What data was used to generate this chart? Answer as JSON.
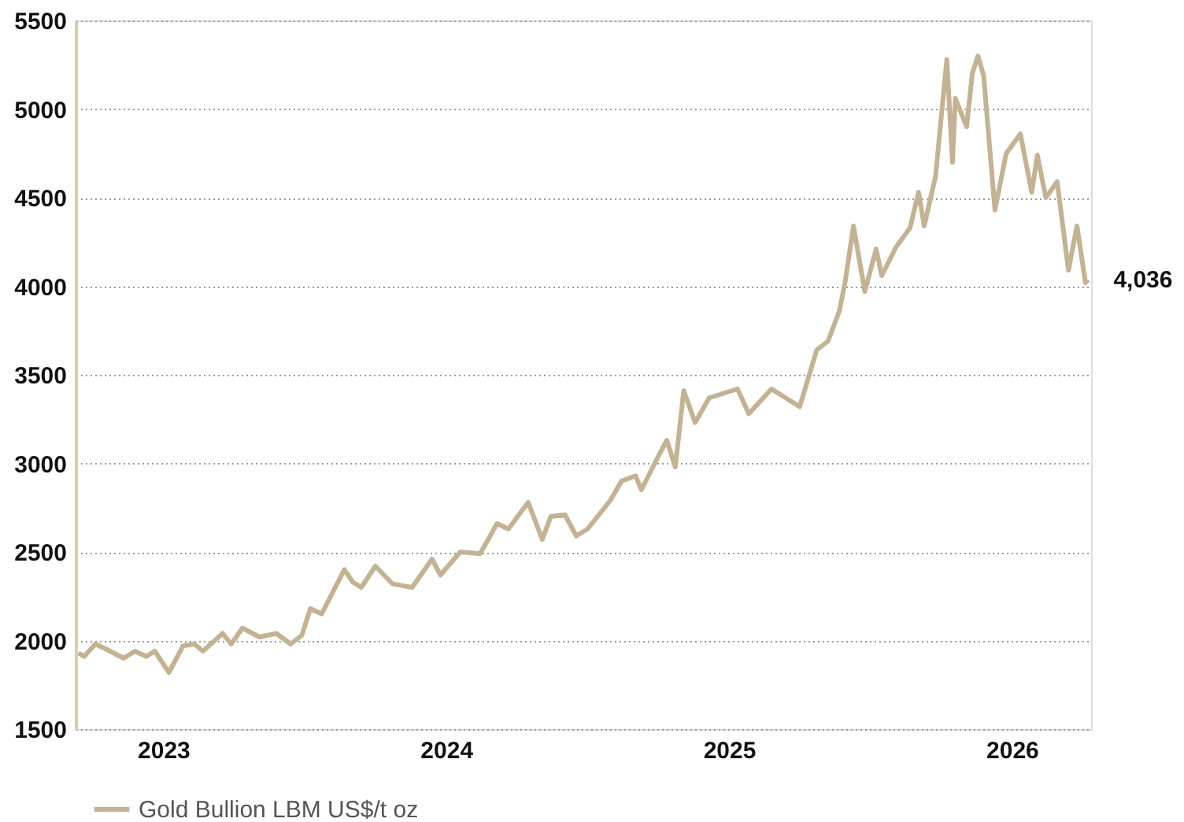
{
  "chart_data": {
    "type": "line",
    "x": [
      2022.7,
      2022.72,
      2022.76,
      2022.8,
      2022.86,
      2022.9,
      2022.94,
      2022.97,
      2023.02,
      2023.07,
      2023.11,
      2023.14,
      2023.21,
      2023.24,
      2023.28,
      2023.34,
      2023.4,
      2023.45,
      2023.49,
      2023.52,
      2023.56,
      2023.64,
      2023.67,
      2023.7,
      2023.75,
      2023.81,
      2023.88,
      2023.95,
      2023.98,
      2024.05,
      2024.12,
      2024.18,
      2024.22,
      2024.29,
      2024.34,
      2024.37,
      2024.42,
      2024.46,
      2024.5,
      2024.58,
      2024.62,
      2024.67,
      2024.69,
      2024.75,
      2024.78,
      2024.81,
      2024.84,
      2024.88,
      2024.93,
      2025.03,
      2025.07,
      2025.15,
      2025.2,
      2025.25,
      2025.31,
      2025.35,
      2025.39,
      2025.41,
      2025.44,
      2025.48,
      2025.52,
      2025.54,
      2025.59,
      2025.64,
      2025.67,
      2025.69,
      2025.73,
      2025.77,
      2025.79,
      2025.8,
      2025.84,
      2025.86,
      2025.88,
      2025.9,
      2025.94,
      2025.98,
      2026.03,
      2026.07,
      2026.09,
      2026.12,
      2026.16,
      2026.2,
      2026.23,
      2026.26,
      2026.27
    ],
    "series": [
      {
        "name": "Gold Bullion LBM US$/t oz",
        "color": "#c3b393",
        "values": [
          1930,
          1910,
          1980,
          1950,
          1900,
          1940,
          1910,
          1940,
          1820,
          1970,
          1980,
          1940,
          2040,
          1980,
          2070,
          2020,
          2040,
          1980,
          2030,
          2180,
          2150,
          2400,
          2330,
          2300,
          2420,
          2320,
          2300,
          2460,
          2370,
          2500,
          2490,
          2660,
          2630,
          2780,
          2570,
          2700,
          2710,
          2590,
          2630,
          2790,
          2900,
          2930,
          2850,
          3040,
          3130,
          2980,
          3410,
          3230,
          3370,
          3420,
          3280,
          3420,
          3370,
          3320,
          3640,
          3690,
          3860,
          4020,
          4340,
          3970,
          4210,
          4060,
          4220,
          4330,
          4530,
          4340,
          4620,
          5280,
          4700,
          5060,
          4900,
          5200,
          5300,
          5190,
          4430,
          4750,
          4860,
          4530,
          4740,
          4500,
          4590,
          4090,
          4340,
          4020,
          4036
        ]
      }
    ],
    "xlim": [
      2022.69,
      2026.28
    ],
    "xticks": [
      2023,
      2024,
      2025,
      2026
    ],
    "ylim": [
      1500,
      5500
    ],
    "yticks": [
      1500,
      2000,
      2500,
      3000,
      3500,
      4000,
      4500,
      5000,
      5500
    ],
    "grid": "y",
    "legend": "bottom left",
    "annotations": [
      {
        "text": "4,036",
        "x": 2026.27,
        "y": 4036
      }
    ]
  }
}
